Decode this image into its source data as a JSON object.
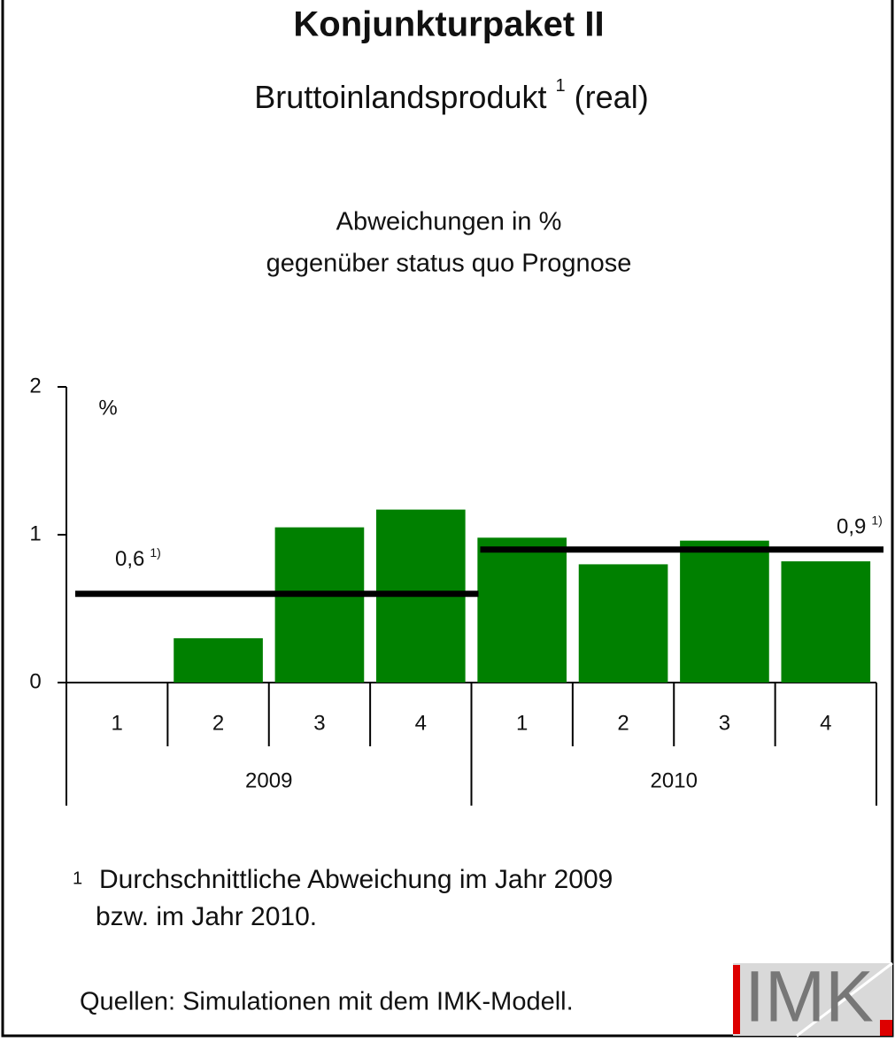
{
  "chart_data": {
    "type": "bar",
    "title": "Konjunkturpaket II",
    "subtitle": {
      "text": "Bruttoinlandsprodukt",
      "sup": "1",
      "suffix": "(real)"
    },
    "axis_title": [
      "Abweichungen in %",
      "gegenüber status quo Prognose"
    ],
    "y_unit": "%",
    "categories": [
      "1",
      "2",
      "3",
      "4",
      "1",
      "2",
      "3",
      "4"
    ],
    "groups": [
      "2009",
      "2010"
    ],
    "values": [
      0,
      0.3,
      1.05,
      1.17,
      0.98,
      0.8,
      0.96,
      0.82
    ],
    "color": "#008000",
    "ylim": [
      0,
      2
    ],
    "yticks": [
      0,
      1,
      2
    ],
    "averages": [
      {
        "value": 0.6,
        "label": "0,6",
        "note": "1)"
      },
      {
        "value": 0.9,
        "label": "0,9",
        "note": "1)"
      }
    ],
    "footnote": {
      "marker": "1",
      "lines": [
        "Durchschnittliche Abweichung im Jahr 2009",
        "bzw. im Jahr 2010."
      ]
    },
    "source": "Quellen: Simulationen mit dem IMK-Modell.",
    "logo": "IMK"
  }
}
